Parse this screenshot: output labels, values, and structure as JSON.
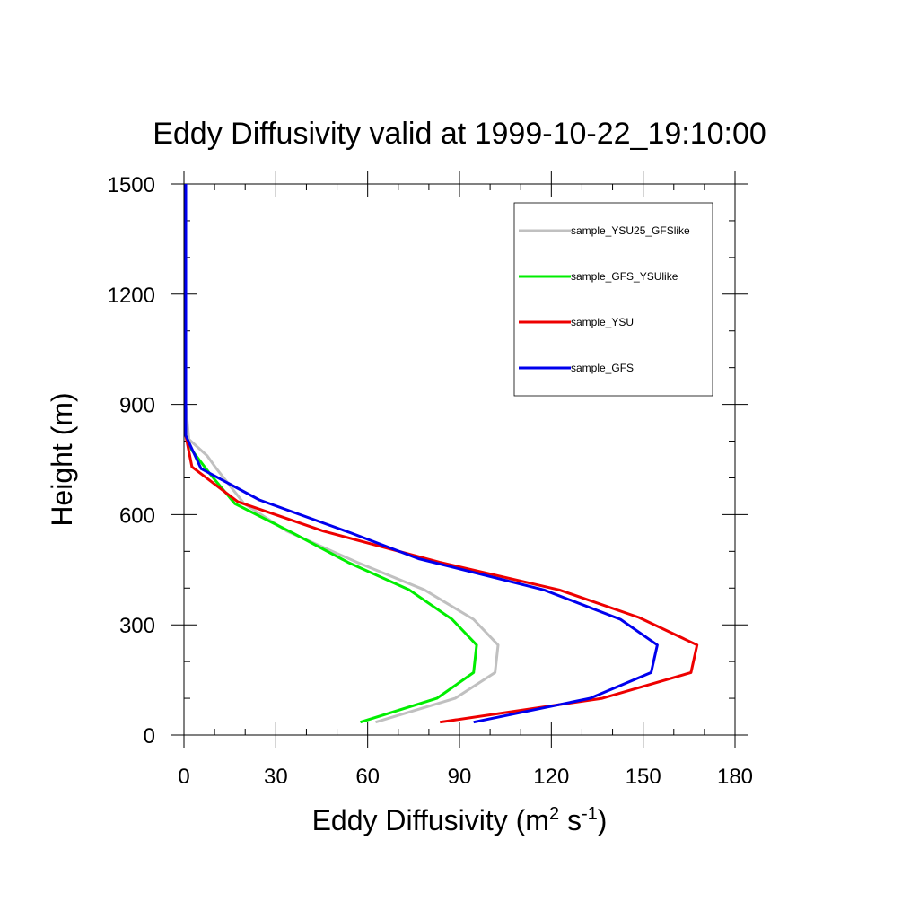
{
  "chart_data": {
    "type": "line",
    "title": "Eddy Diffusivity valid at 1999-10-22_19:10:00",
    "xlabel": {
      "base": "Eddy Diffusivity (m",
      "sup1": "2",
      "mid": " s",
      "sup2": "-1",
      "end": ")"
    },
    "ylabel": "Height (m)",
    "xlim": [
      0,
      180
    ],
    "ylim": [
      0,
      1500
    ],
    "xticks": [
      0,
      30,
      60,
      90,
      120,
      150,
      180
    ],
    "xtick_labels": [
      "0",
      "30",
      "60",
      "90",
      "120",
      "150",
      "180"
    ],
    "yticks": [
      0,
      300,
      600,
      900,
      1200,
      1500
    ],
    "ytick_labels": [
      "0",
      "300",
      "600",
      "900",
      "1200",
      "1500"
    ],
    "x_minor_step": 10,
    "y_minor_step": 100,
    "legend_position": "top-right",
    "series": [
      {
        "name": "sample_YSU25_GFSlike",
        "color": "#c0c0c0",
        "points": [
          [
            62.6,
            35
          ],
          [
            88.6,
            100
          ],
          [
            101.6,
            170
          ],
          [
            102.6,
            245
          ],
          [
            94.6,
            315
          ],
          [
            78.6,
            395
          ],
          [
            56.6,
            470
          ],
          [
            33.6,
            555
          ],
          [
            19.6,
            630
          ],
          [
            10.6,
            725
          ],
          [
            7.6,
            760
          ],
          [
            1.6,
            805
          ],
          [
            0.6,
            900
          ],
          [
            0.6,
            1050
          ],
          [
            0.6,
            1200
          ],
          [
            0.6,
            1500
          ]
        ]
      },
      {
        "name": "sample_GFS_YSUlike",
        "color": "#00ee00",
        "points": [
          [
            57.6,
            35
          ],
          [
            82.6,
            100
          ],
          [
            94.6,
            170
          ],
          [
            95.6,
            245
          ],
          [
            87.6,
            315
          ],
          [
            73.6,
            395
          ],
          [
            53.6,
            470
          ],
          [
            35.6,
            550
          ],
          [
            16.6,
            630
          ],
          [
            8.6,
            710
          ],
          [
            2.6,
            775
          ],
          [
            0.6,
            815
          ],
          [
            0.6,
            900
          ],
          [
            0.6,
            1050
          ],
          [
            0.6,
            1200
          ],
          [
            0.6,
            1500
          ]
        ]
      },
      {
        "name": "sample_YSU",
        "color": "#ee0000",
        "points": [
          [
            83.6,
            35
          ],
          [
            136.6,
            100
          ],
          [
            165.6,
            170
          ],
          [
            167.6,
            245
          ],
          [
            148.6,
            320
          ],
          [
            122.6,
            395
          ],
          [
            83.6,
            470
          ],
          [
            45.6,
            555
          ],
          [
            17.6,
            635
          ],
          [
            2.6,
            730
          ],
          [
            0.6,
            815
          ],
          [
            0.6,
            900
          ],
          [
            0.6,
            1050
          ],
          [
            0.6,
            1200
          ],
          [
            0.6,
            1500
          ]
        ]
      },
      {
        "name": "sample_GFS",
        "color": "#0000ee",
        "points": [
          [
            94.6,
            35
          ],
          [
            132.6,
            100
          ],
          [
            152.6,
            170
          ],
          [
            154.6,
            245
          ],
          [
            142.6,
            315
          ],
          [
            117.6,
            395
          ],
          [
            76.6,
            480
          ],
          [
            54.6,
            550
          ],
          [
            24.6,
            640
          ],
          [
            5.6,
            725
          ],
          [
            0.6,
            815
          ],
          [
            0.6,
            900
          ],
          [
            0.6,
            1050
          ],
          [
            0.6,
            1200
          ],
          [
            0.6,
            1500
          ]
        ]
      }
    ]
  }
}
